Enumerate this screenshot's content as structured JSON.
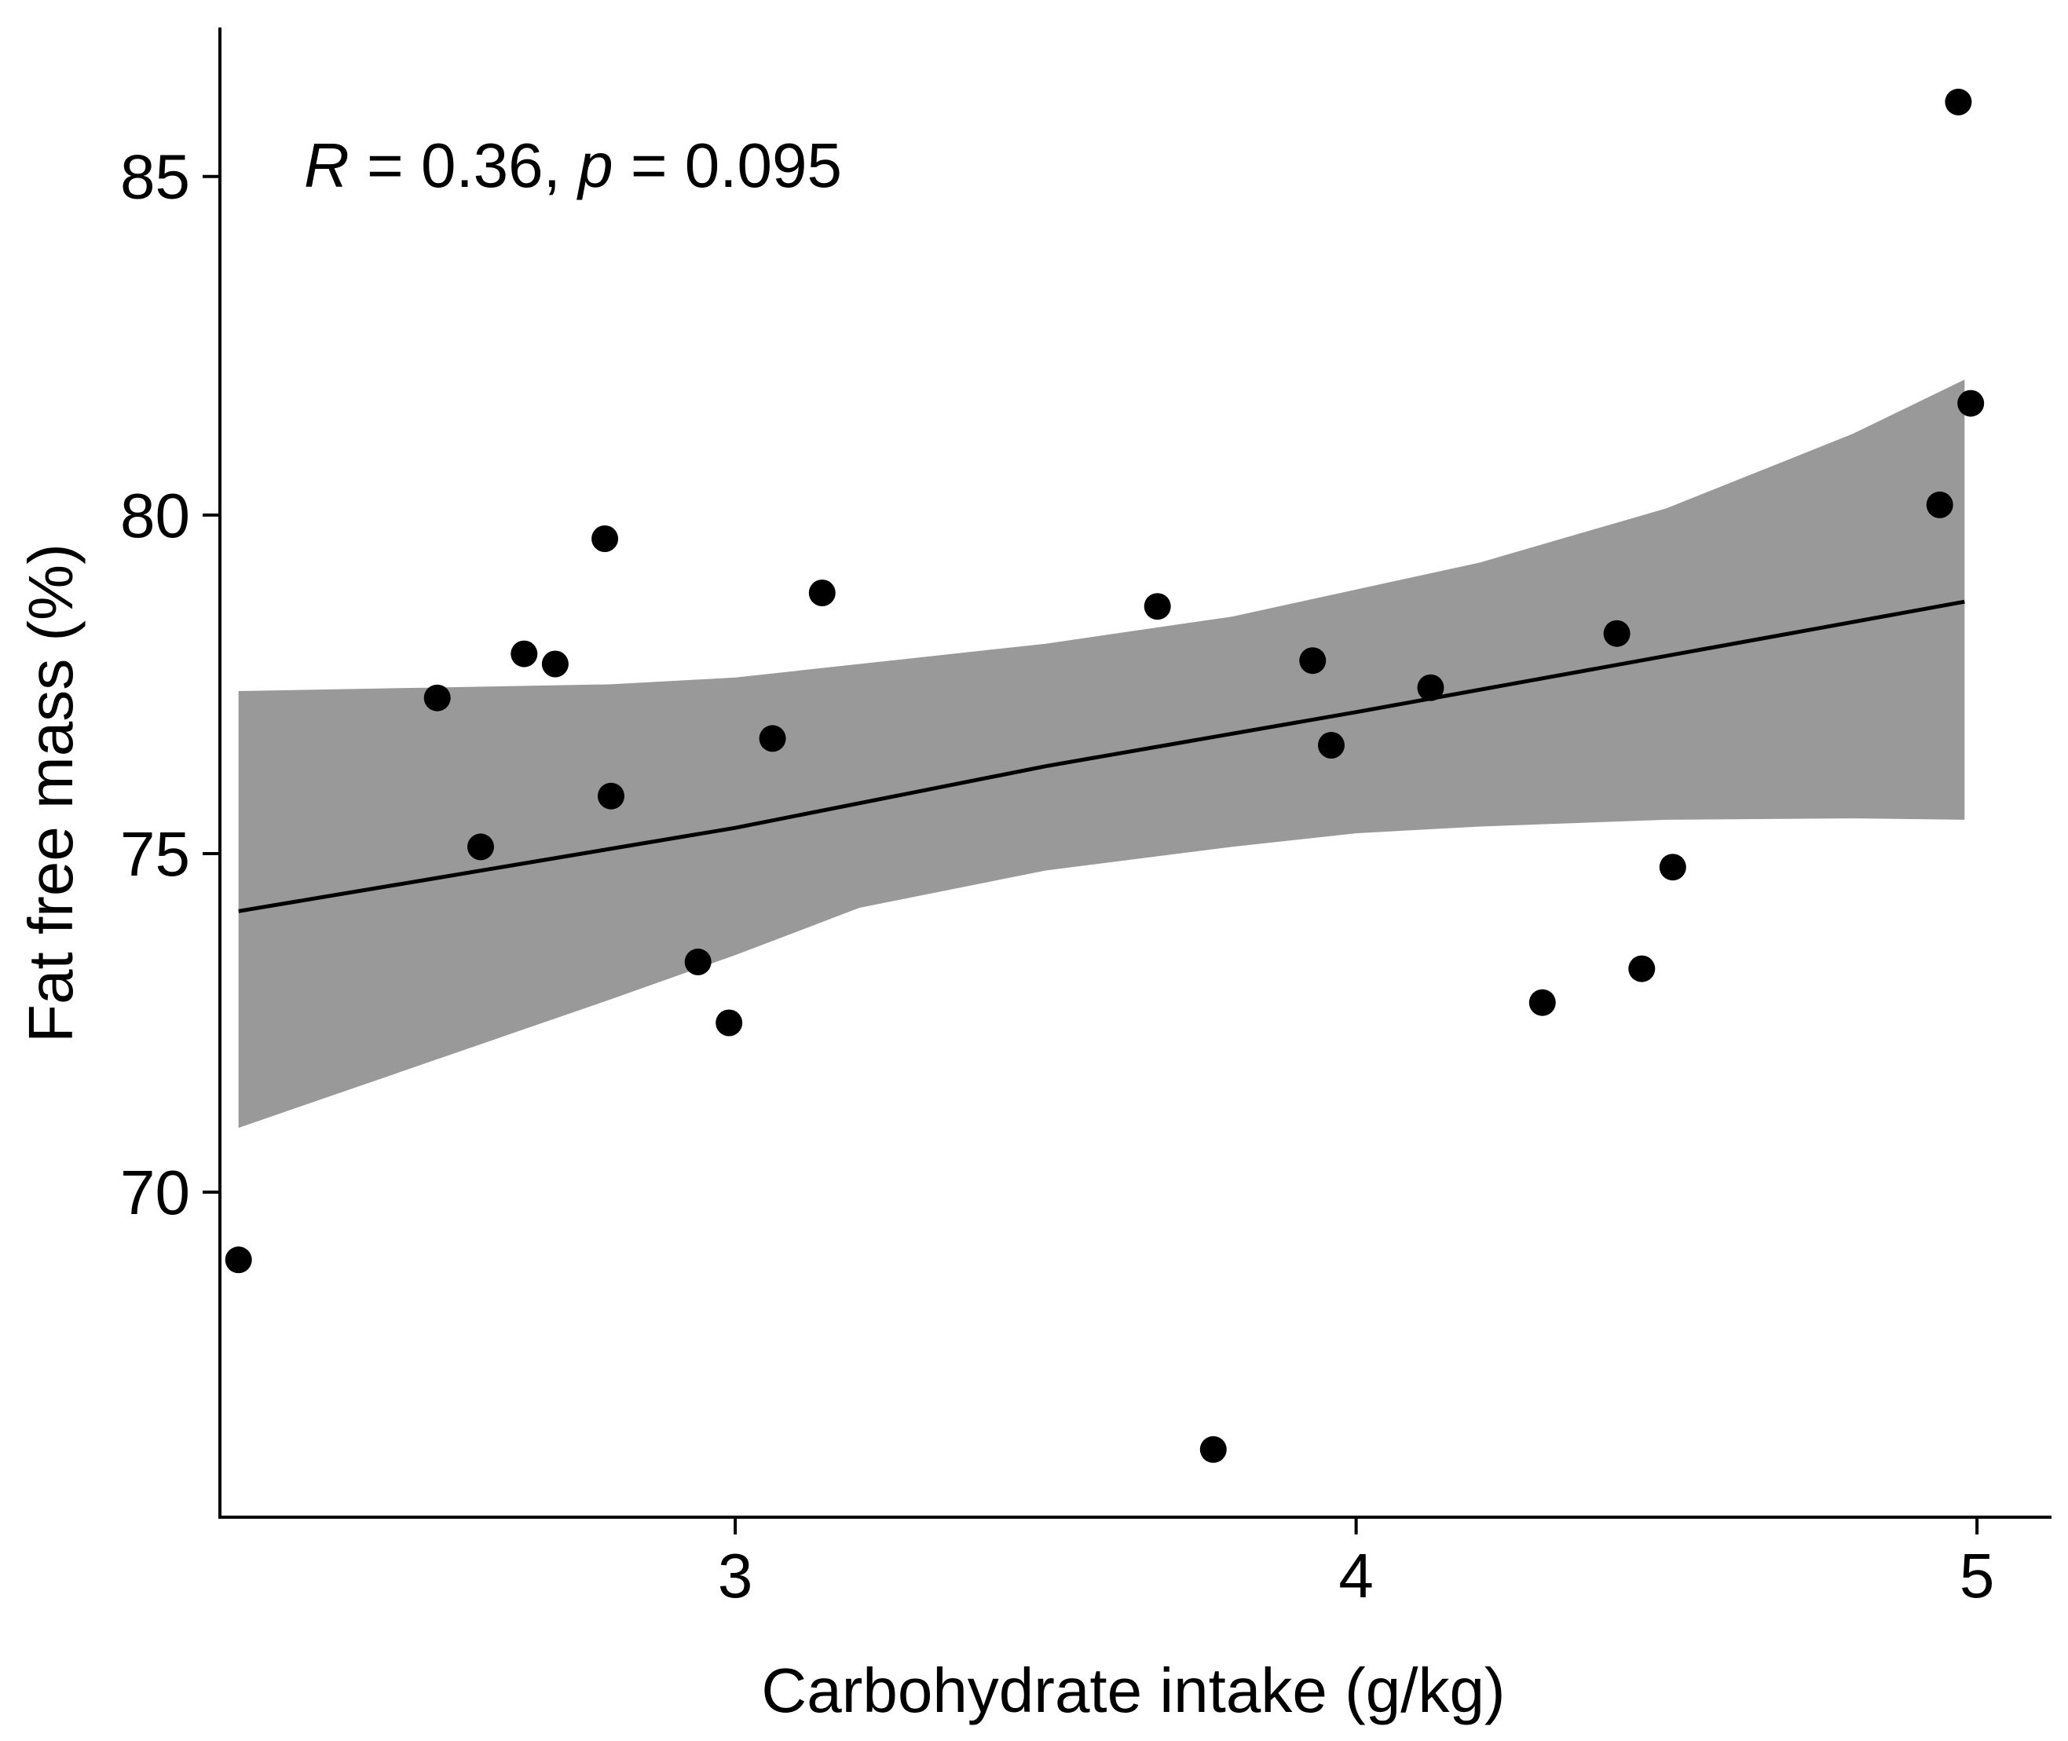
{
  "chart_data": {
    "type": "scatter",
    "title": "",
    "xlabel": "Carbohydrate intake (g/kg)",
    "ylabel": "Fat free mass (%)",
    "xlim": [
      2.17,
      5.12
    ],
    "ylim": [
      65.2,
      87.2
    ],
    "xticks": [
      3,
      4,
      5
    ],
    "yticks": [
      70,
      75,
      80,
      85
    ],
    "grid": false,
    "annotation": {
      "r_symbol": "R",
      "r_text": " = 0.36, ",
      "p_symbol": "p",
      "p_text": " = 0.095"
    },
    "series": [
      {
        "name": "observations",
        "x": [
          2.2,
          2.52,
          2.59,
          2.66,
          2.71,
          2.79,
          2.8,
          2.94,
          2.99,
          3.06,
          3.14,
          3.68,
          3.77,
          3.93,
          3.96,
          4.12,
          4.3,
          4.42,
          4.46,
          4.51,
          4.94,
          4.97,
          4.99
        ],
        "y": [
          69.0,
          77.3,
          75.1,
          77.95,
          77.8,
          79.65,
          75.85,
          73.4,
          72.5,
          76.7,
          78.85,
          78.65,
          66.2,
          77.85,
          76.6,
          77.45,
          72.8,
          78.25,
          73.3,
          74.8,
          80.15,
          86.1,
          81.65
        ],
        "color": "#000000"
      }
    ],
    "trend_line": {
      "x": [
        2.2,
        2.5,
        3.0,
        3.5,
        4.0,
        4.5,
        4.98
      ],
      "y": [
        74.15,
        74.61,
        75.38,
        76.29,
        77.09,
        77.92,
        78.72
      ],
      "color": "#000000"
    },
    "confidence_band": {
      "x": [
        2.2,
        2.5,
        2.8,
        3.0,
        3.2,
        3.5,
        3.8,
        4.0,
        4.2,
        4.5,
        4.8,
        4.98
      ],
      "lower": [
        70.95,
        71.9,
        72.85,
        73.5,
        74.2,
        74.75,
        75.1,
        75.3,
        75.4,
        75.5,
        75.52,
        75.5
      ],
      "upper": [
        77.4,
        77.45,
        77.5,
        77.6,
        77.8,
        78.1,
        78.5,
        78.9,
        79.3,
        80.1,
        81.2,
        82.0
      ],
      "color": "#999999"
    },
    "colors": {
      "axis": "#000000",
      "band": "#999999",
      "points": "#000000",
      "line": "#000000"
    }
  }
}
